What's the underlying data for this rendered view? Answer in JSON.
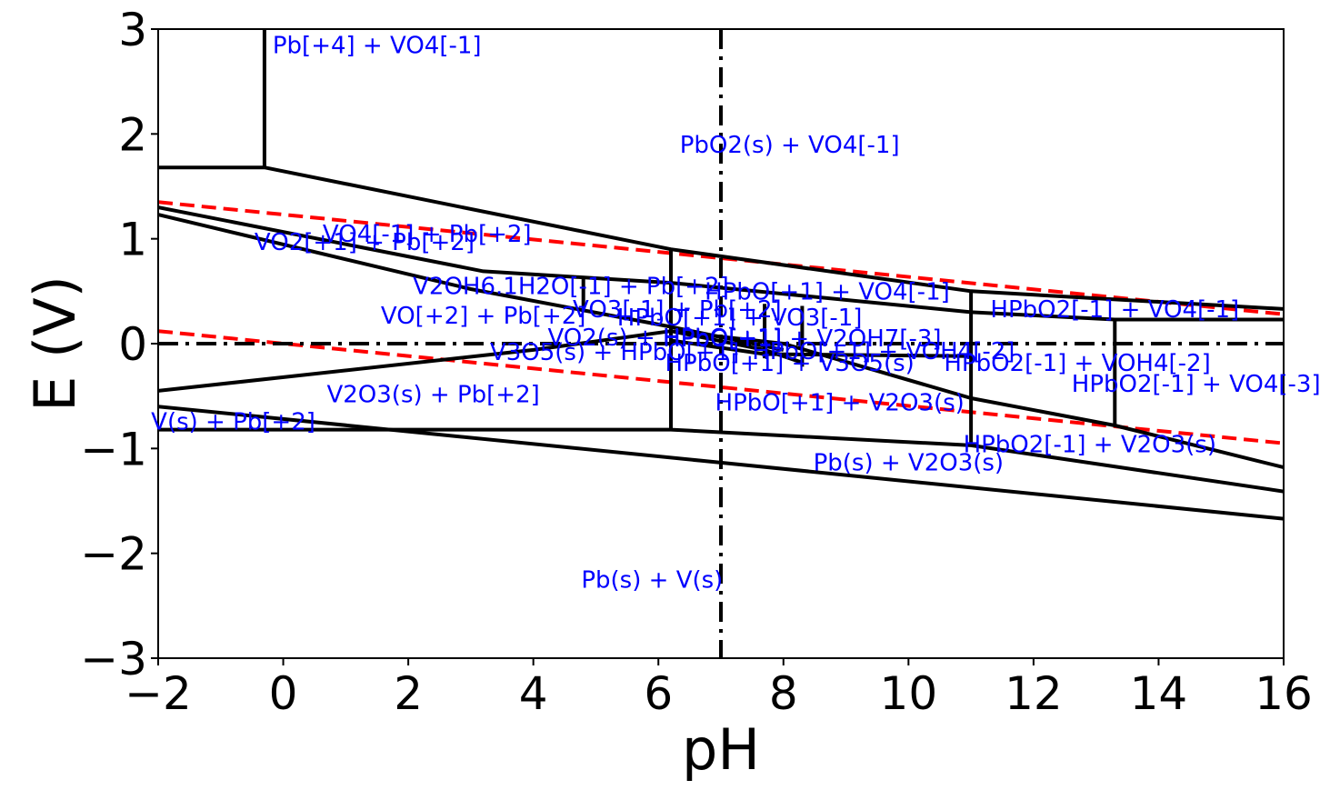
{
  "chart_data": {
    "type": "line",
    "title": "",
    "xlabel": "pH",
    "ylabel": "E (V)",
    "xlim": [
      -2,
      16
    ],
    "ylim": [
      -3,
      3
    ],
    "grid": false,
    "x_ticks": [
      -2,
      0,
      2,
      4,
      6,
      8,
      10,
      12,
      14,
      16
    ],
    "y_ticks": [
      -3,
      -2,
      -1,
      0,
      1,
      2,
      3
    ],
    "x_tick_labels": [
      "−2",
      "0",
      "2",
      "4",
      "6",
      "8",
      "10",
      "12",
      "14",
      "16"
    ],
    "y_tick_labels": [
      "−3",
      "−2",
      "−1",
      "0",
      "1",
      "2",
      "3"
    ],
    "boundaries": [
      {
        "points": [
          [
            -2,
            1.68
          ],
          [
            -0.3,
            1.68
          ]
        ]
      },
      {
        "points": [
          [
            -0.3,
            1.68
          ],
          [
            -0.3,
            3.0
          ]
        ]
      },
      {
        "points": [
          [
            -0.3,
            1.68
          ],
          [
            6.2,
            0.9
          ],
          [
            11.0,
            0.5
          ],
          [
            16,
            0.33
          ]
        ]
      },
      {
        "points": [
          [
            -2,
            1.3
          ],
          [
            3.2,
            0.69
          ],
          [
            6.2,
            0.58
          ],
          [
            11.0,
            0.3
          ],
          [
            13.3,
            0.23
          ],
          [
            16,
            0.23
          ]
        ]
      },
      {
        "points": [
          [
            -2,
            1.23
          ],
          [
            3.0,
            0.52
          ],
          [
            6.2,
            0.16
          ],
          [
            8.0,
            -0.06
          ]
        ]
      },
      {
        "points": [
          [
            6.2,
            0.9
          ],
          [
            6.2,
            -0.82
          ]
        ]
      },
      {
        "points": [
          [
            4.8,
            0.62
          ],
          [
            4.8,
            0.3
          ]
        ]
      },
      {
        "points": [
          [
            7.7,
            0.38
          ],
          [
            7.7,
            -0.14
          ]
        ]
      },
      {
        "points": [
          [
            8.3,
            0.36
          ],
          [
            8.3,
            -0.22
          ]
        ]
      },
      {
        "points": [
          [
            11.0,
            0.5
          ],
          [
            11.0,
            -0.97
          ]
        ]
      },
      {
        "points": [
          [
            13.3,
            0.23
          ],
          [
            13.3,
            -0.78
          ]
        ]
      },
      {
        "points": [
          [
            -2,
            -0.45
          ],
          [
            4.0,
            -0.06
          ],
          [
            6.2,
            0.12
          ],
          [
            8.0,
            0.0
          ],
          [
            11.0,
            -0.52
          ],
          [
            13.3,
            -0.78
          ],
          [
            16,
            -1.18
          ]
        ]
      },
      {
        "points": [
          [
            -2,
            -0.82
          ],
          [
            6.2,
            -0.82
          ],
          [
            11.0,
            -0.97
          ],
          [
            16,
            -1.41
          ]
        ]
      },
      {
        "points": [
          [
            -2,
            -0.6
          ],
          [
            16,
            -1.67
          ]
        ]
      },
      {
        "points": [
          [
            6.2,
            0.12
          ],
          [
            7.7,
            -0.06
          ],
          [
            8.3,
            -0.18
          ]
        ]
      },
      {
        "points": [
          [
            6.2,
            0.03
          ],
          [
            7.7,
            -0.1
          ],
          [
            11.0,
            -0.12
          ]
        ]
      }
    ],
    "water_lines": [
      {
        "points": [
          [
            -2,
            1.35
          ],
          [
            16,
            0.28
          ]
        ]
      },
      {
        "points": [
          [
            -2,
            0.12
          ],
          [
            16,
            -0.95
          ]
        ]
      }
    ],
    "reference_lines": [
      {
        "orientation": "horizontal",
        "value": 0
      },
      {
        "orientation": "vertical",
        "value": 7
      }
    ],
    "region_labels": [
      {
        "text": "Pb[+4] + VO4[-1]",
        "x": 1.5,
        "y": 2.85
      },
      {
        "text": "PbO2(s) + VO4[-1]",
        "x": 8.1,
        "y": 1.9
      },
      {
        "text": "VO4[-1] + Pb[+2]",
        "x": 2.3,
        "y": 1.05
      },
      {
        "text": "VO2[+1] + Pb[+2]",
        "x": 1.3,
        "y": 0.97
      },
      {
        "text": "V2OH6.1H2O[-1] + Pb[+2]",
        "x": 4.6,
        "y": 0.55
      },
      {
        "text": "HPbO[+1] + VO4[-1]",
        "x": 8.7,
        "y": 0.5
      },
      {
        "text": "HPbO2[-1] + VO4[-1]",
        "x": 13.3,
        "y": 0.33
      },
      {
        "text": "VO3[-1] + Pb[+2]",
        "x": 6.3,
        "y": 0.33
      },
      {
        "text": "VO[+2] + Pb[+2]",
        "x": 3.2,
        "y": 0.27
      },
      {
        "text": "HPbO[+1] + VO3[-1]",
        "x": 7.3,
        "y": 0.25
      },
      {
        "text": "HPbO[+1] + V2OH7[-3]",
        "x": 8.3,
        "y": 0.05
      },
      {
        "text": "VO2(s) + HPbO[+1]",
        "x": 6.1,
        "y": 0.06
      },
      {
        "text": "V3O5(s) + HPbO[+1]",
        "x": 5.3,
        "y": -0.08
      },
      {
        "text": "HPbO[+1] + VOH4[-2]",
        "x": 9.6,
        "y": -0.07
      },
      {
        "text": "HPbO[+1] + V3O5(s)",
        "x": 8.1,
        "y": -0.18
      },
      {
        "text": "HPbO2[-1] + VOH4[-2]",
        "x": 12.7,
        "y": -0.18
      },
      {
        "text": "HPbO2[-1] + VO4[-3]",
        "x": 14.6,
        "y": -0.38
      },
      {
        "text": "V2O3(s) + Pb[+2]",
        "x": 2.4,
        "y": -0.48
      },
      {
        "text": "HPbO[+1] + V2O3(s)",
        "x": 8.9,
        "y": -0.56
      },
      {
        "text": "V(s) + Pb[+2]",
        "x": -0.8,
        "y": -0.74
      },
      {
        "text": "HPbO2[-1] + V2O3(s)",
        "x": 12.9,
        "y": -0.96
      },
      {
        "text": "Pb(s) + V2O3(s)",
        "x": 10.0,
        "y": -1.13
      },
      {
        "text": "Pb(s) + V(s)",
        "x": 5.9,
        "y": -2.25
      }
    ],
    "colors": {
      "boundary": "#000000",
      "water_line": "#ff0000",
      "reference_line": "#000000",
      "label": "#0000ff"
    }
  }
}
